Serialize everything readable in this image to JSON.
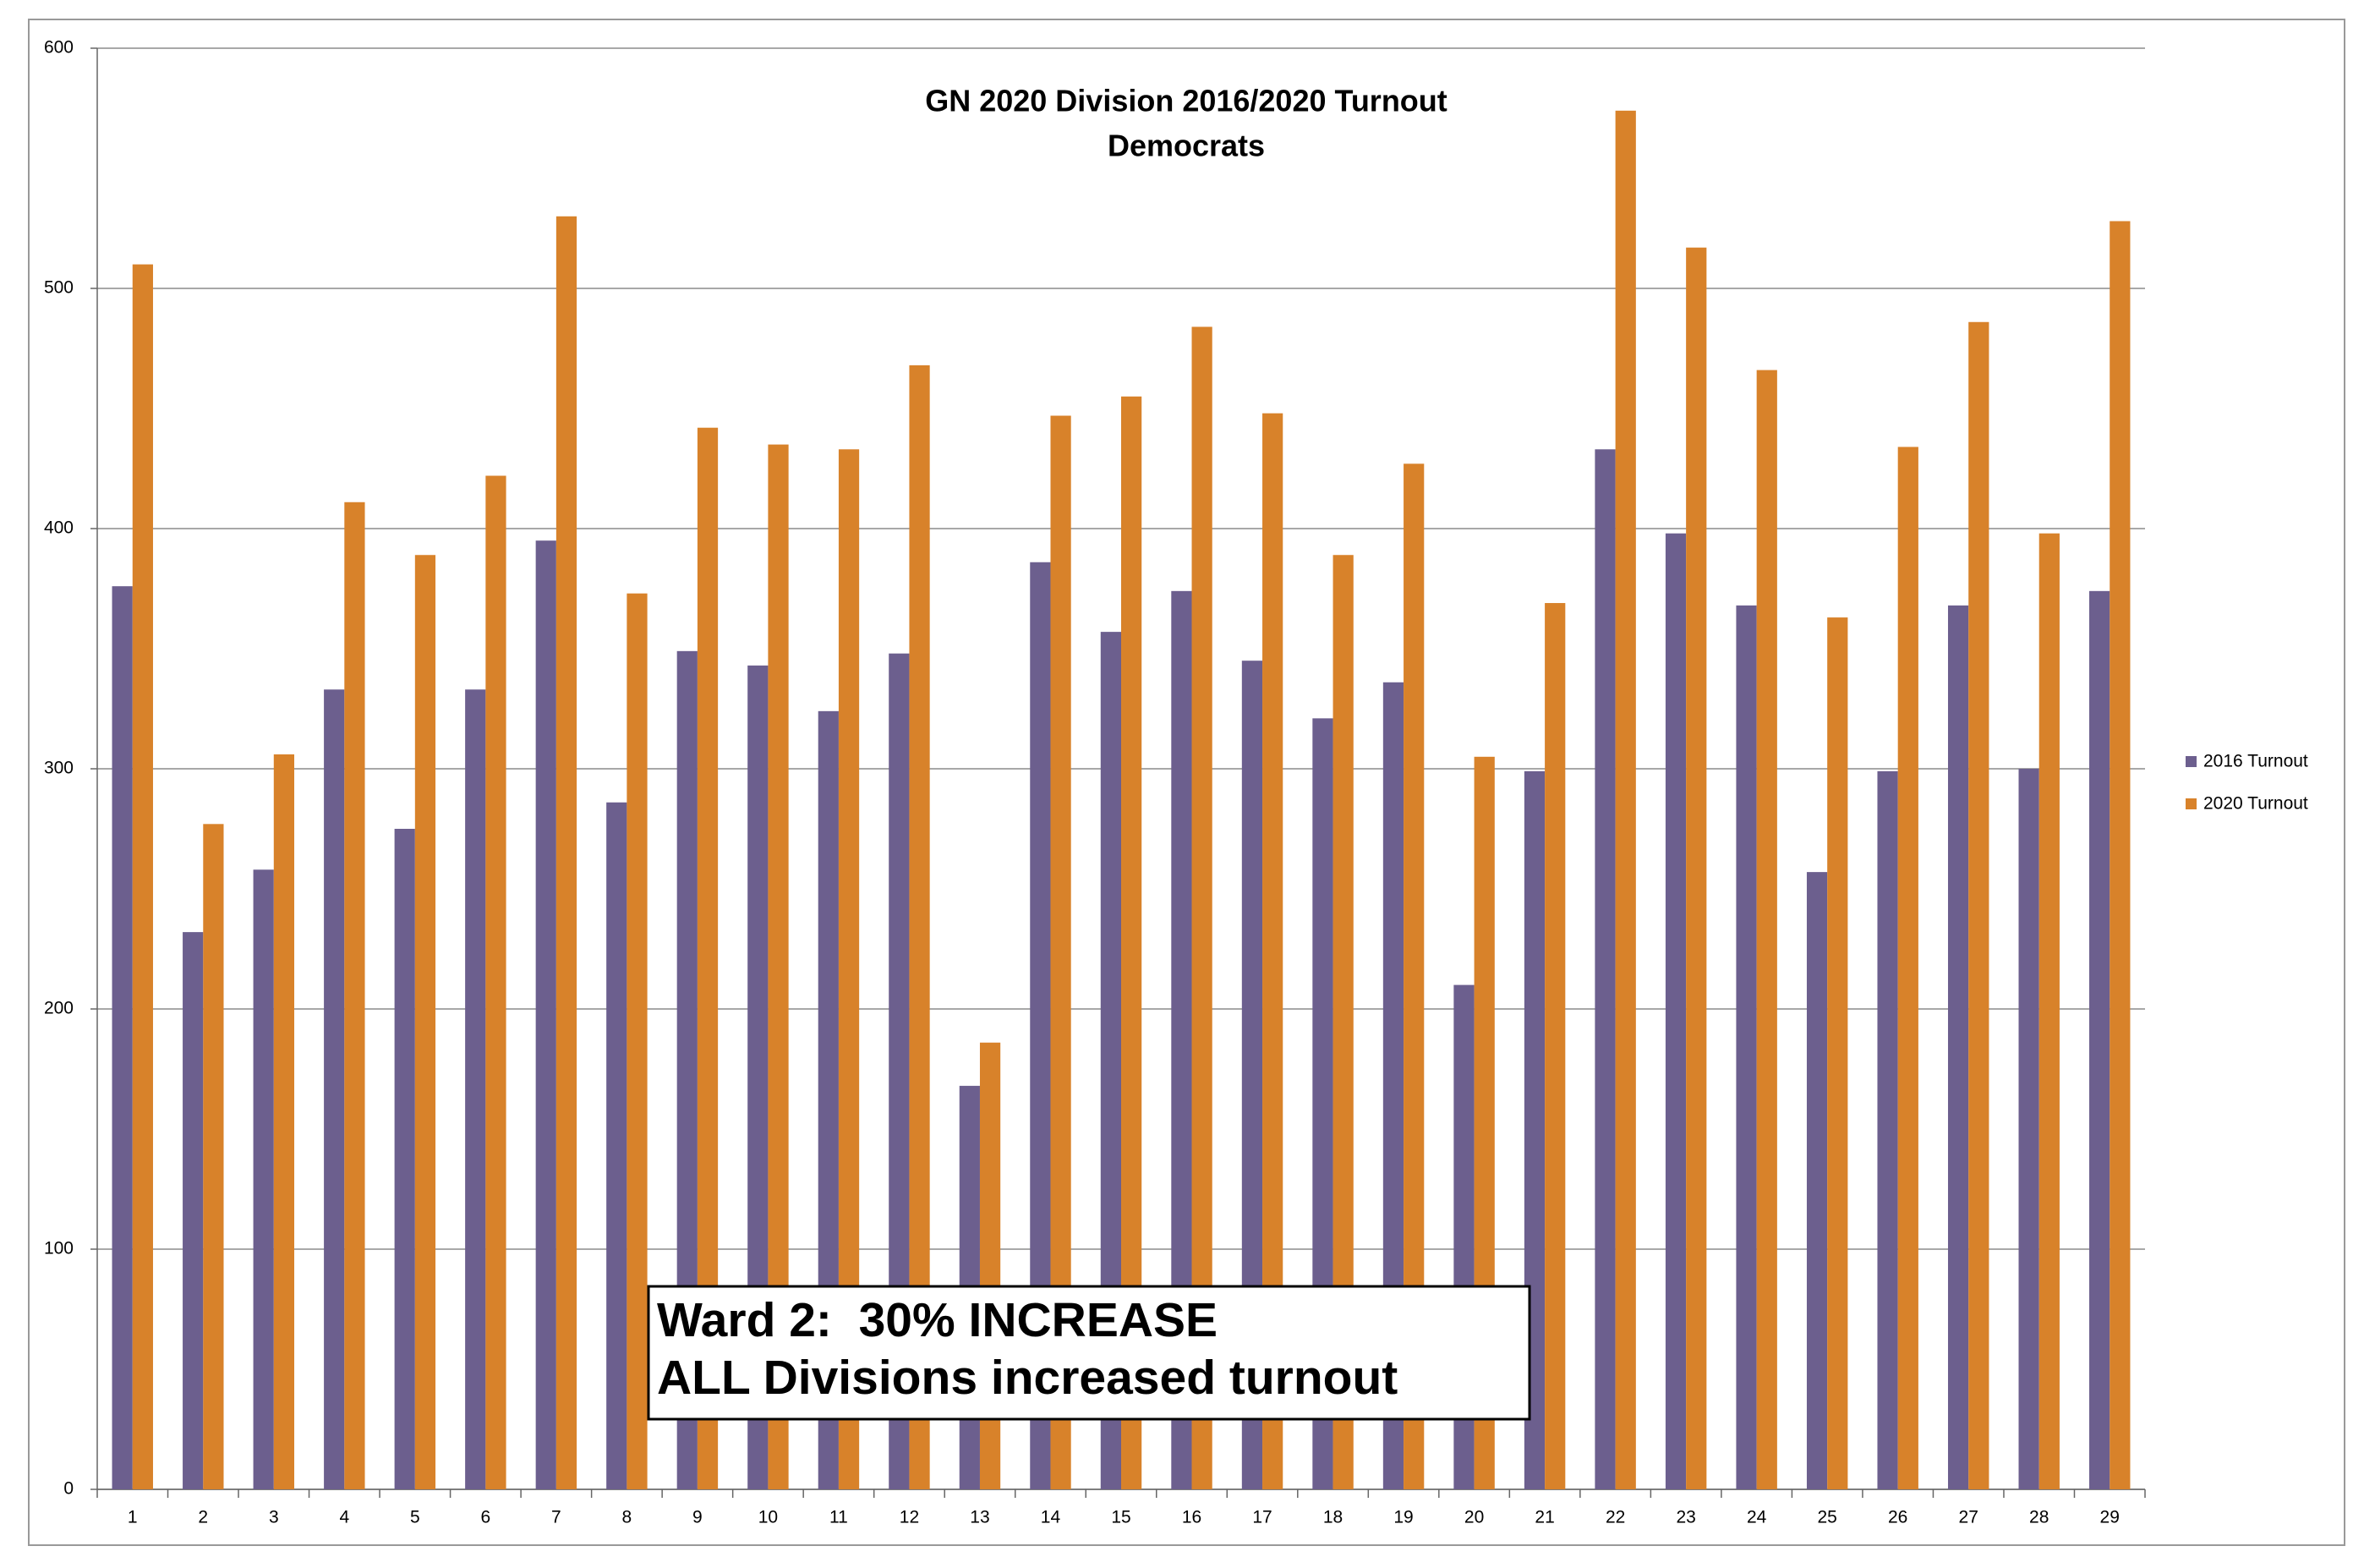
{
  "chart_data": {
    "type": "bar",
    "title": "GN 2020 Division 2016/2020 Turnout",
    "subtitle": "Democrats",
    "categories": [
      "1",
      "2",
      "3",
      "4",
      "5",
      "6",
      "7",
      "8",
      "9",
      "10",
      "11",
      "12",
      "13",
      "14",
      "15",
      "16",
      "17",
      "18",
      "19",
      "20",
      "21",
      "22",
      "23",
      "24",
      "25",
      "26",
      "27",
      "28",
      "29"
    ],
    "series": [
      {
        "name": "2016 Turnout",
        "color": "#6c5f8e",
        "values": [
          376,
          232,
          258,
          333,
          275,
          333,
          395,
          286,
          349,
          343,
          324,
          348,
          168,
          386,
          357,
          374,
          345,
          321,
          336,
          210,
          299,
          433,
          398,
          368,
          257,
          299,
          368,
          300,
          374
        ]
      },
      {
        "name": "2020 Turnout",
        "color": "#d8822a",
        "values": [
          510,
          277,
          306,
          411,
          389,
          422,
          530,
          373,
          442,
          435,
          433,
          468,
          186,
          447,
          455,
          484,
          448,
          389,
          427,
          305,
          369,
          574,
          517,
          466,
          363,
          434,
          486,
          398,
          528
        ]
      }
    ],
    "ylim": [
      0,
      600
    ],
    "yticks": [
      0,
      100,
      200,
      300,
      400,
      500,
      600
    ],
    "grid": true,
    "legend": "right",
    "annotations": [
      "Ward 2:  30% INCREASE",
      "ALL Divisions increased turnout"
    ]
  }
}
